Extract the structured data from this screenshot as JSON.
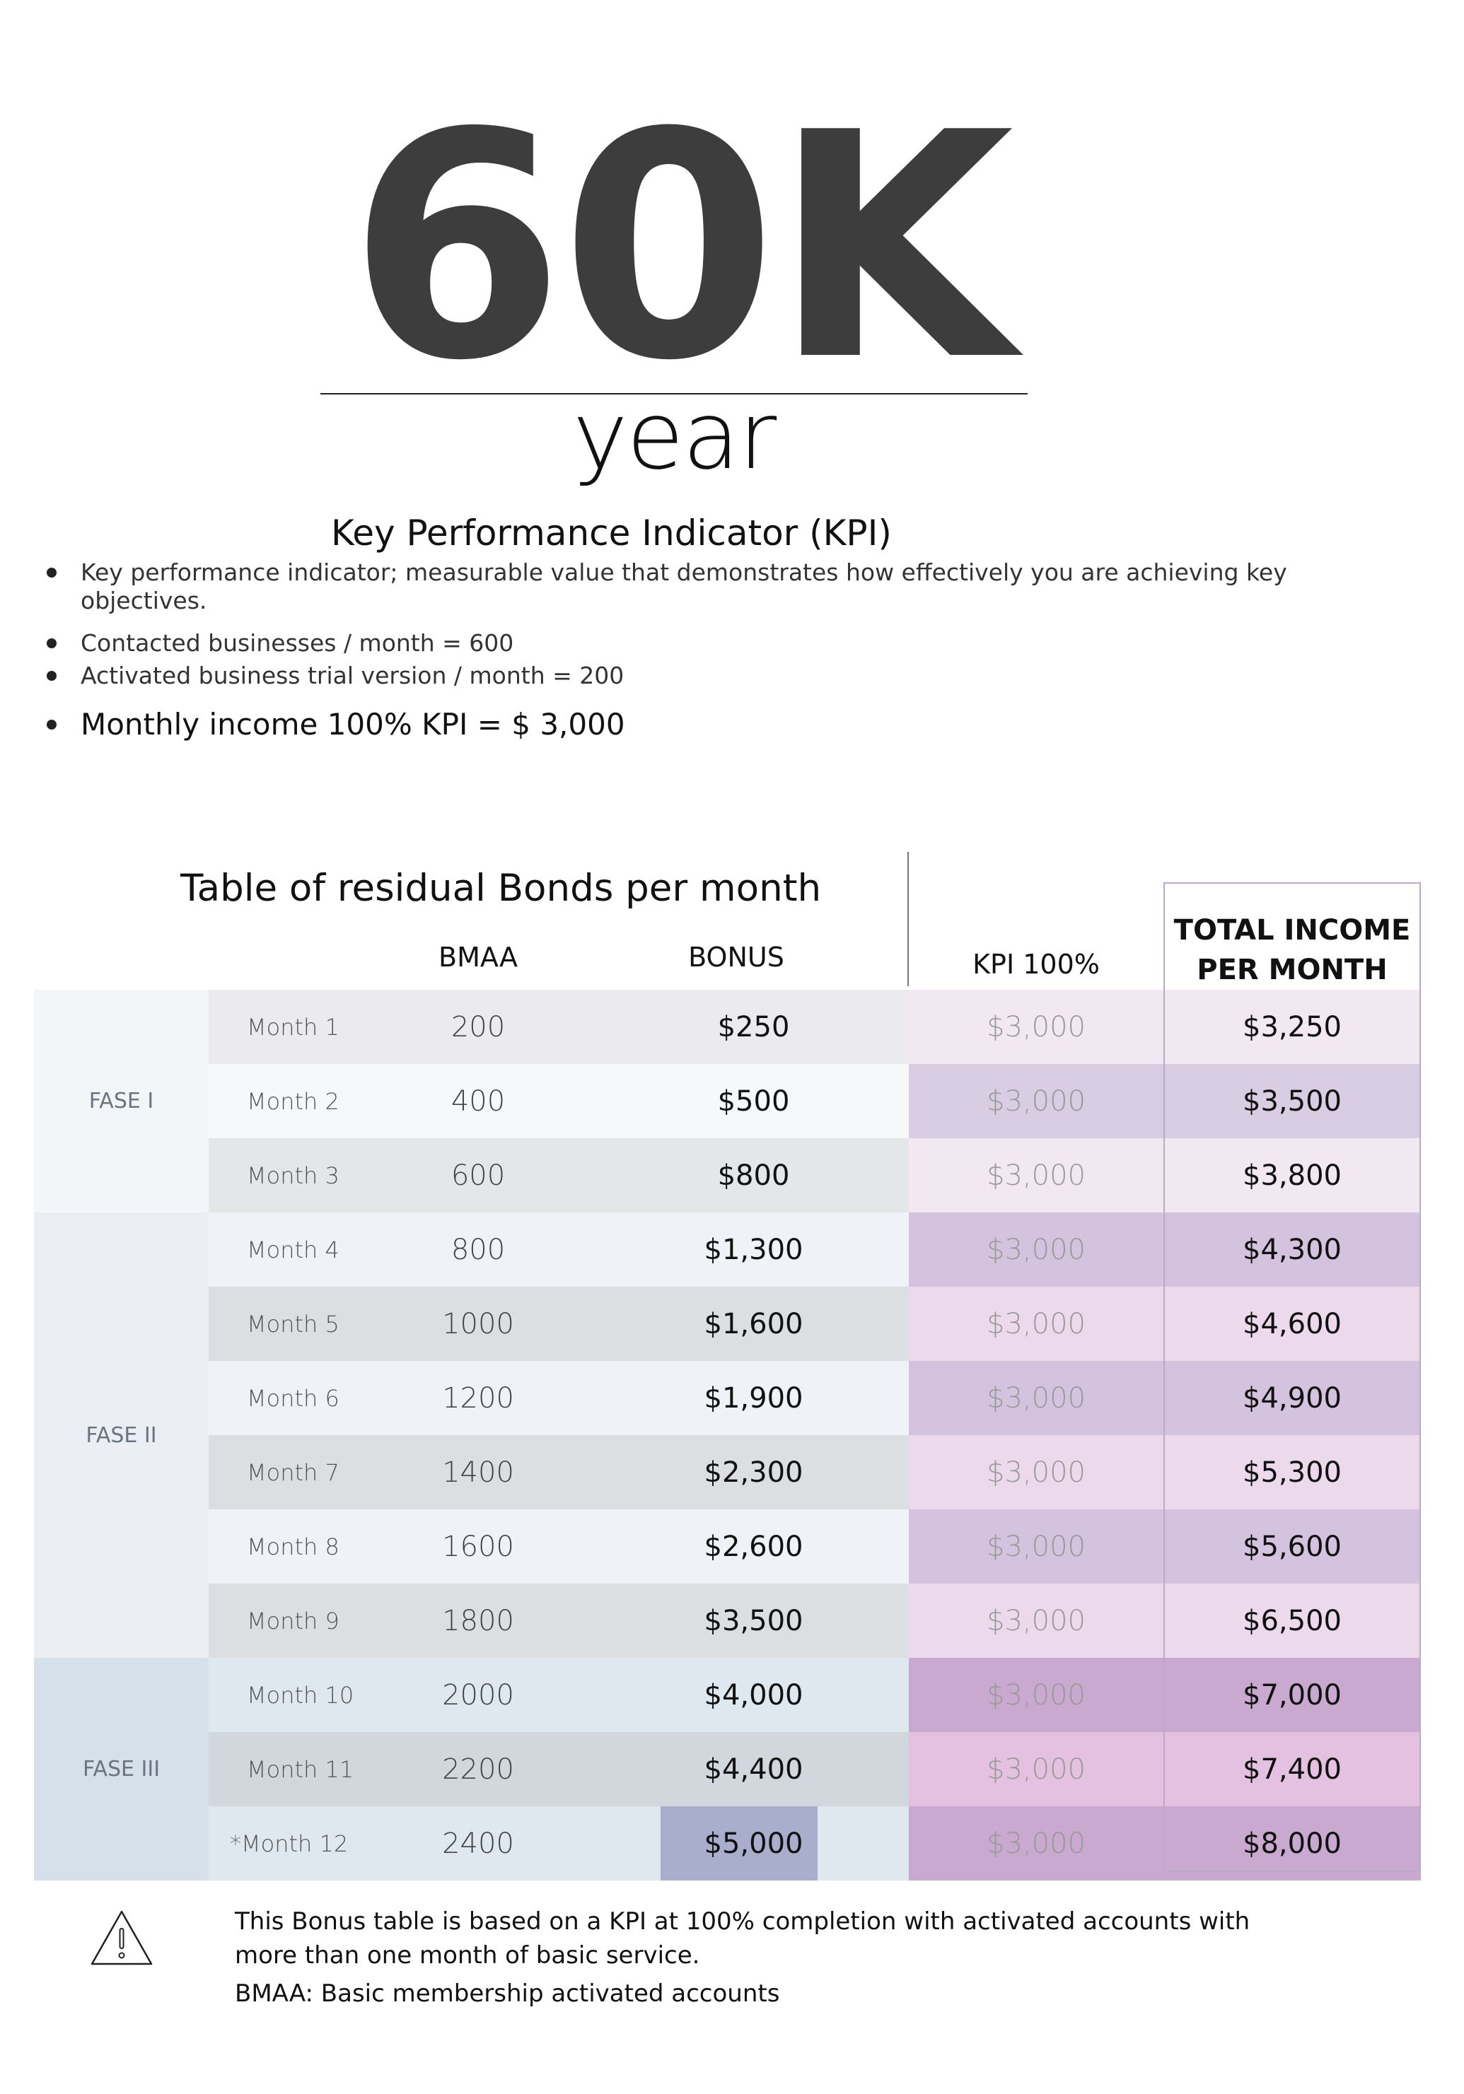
{
  "hero": {
    "amount": "60K",
    "unit": "year"
  },
  "kpi": {
    "title": "Key Performance Indicator (KPI)",
    "bullets": [
      "Key performance indicator; measurable value that demonstrates how effectively you are achieving key objectives.",
      "Contacted businesses / month = 600",
      "Activated business trial version / month = 200",
      "Monthly income 100% KPI = $ 3,000"
    ]
  },
  "table": {
    "title": "Table of residual Bonds per month",
    "headers": {
      "bmaa": "BMAA",
      "bonus": "BONUS",
      "kpi": "KPI 100%",
      "total_line1": "TOTAL INCOME",
      "total_line2": "PER MONTH"
    },
    "phases": [
      "FASE I",
      "FASE II",
      "FASE III"
    ],
    "rows": [
      {
        "month": "Month 1",
        "bmaa": "200",
        "bonus": "$250",
        "kpi": "$3,000",
        "total": "$3,250"
      },
      {
        "month": "Month 2",
        "bmaa": "400",
        "bonus": "$500",
        "kpi": "$3,000",
        "total": "$3,500"
      },
      {
        "month": "Month 3",
        "bmaa": "600",
        "bonus": "$800",
        "kpi": "$3,000",
        "total": "$3,800"
      },
      {
        "month": "Month 4",
        "bmaa": "800",
        "bonus": "$1,300",
        "kpi": "$3,000",
        "total": "$4,300"
      },
      {
        "month": "Month 5",
        "bmaa": "1000",
        "bonus": "$1,600",
        "kpi": "$3,000",
        "total": "$4,600"
      },
      {
        "month": "Month 6",
        "bmaa": "1200",
        "bonus": "$1,900",
        "kpi": "$3,000",
        "total": "$4,900"
      },
      {
        "month": "Month 7",
        "bmaa": "1400",
        "bonus": "$2,300",
        "kpi": "$3,000",
        "total": "$5,300"
      },
      {
        "month": "Month 8",
        "bmaa": "1600",
        "bonus": "$2,600",
        "kpi": "$3,000",
        "total": "$5,600"
      },
      {
        "month": "Month 9",
        "bmaa": "1800",
        "bonus": "$3,500",
        "kpi": "$3,000",
        "total": "$6,500"
      },
      {
        "month": "Month 10",
        "bmaa": "2000",
        "bonus": "$4,000",
        "kpi": "$3,000",
        "total": "$7,000"
      },
      {
        "month": "Month 11",
        "bmaa": "2200",
        "bonus": "$4,400",
        "kpi": "$3,000",
        "total": "$7,400"
      },
      {
        "month": "*Month 12",
        "bmaa": "2400",
        "bonus": "$5,000",
        "kpi": "$3,000",
        "total": "$8,000"
      }
    ]
  },
  "footer": {
    "icon": "warning-triangle-icon",
    "note": "This Bonus table is based on a KPI at 100% completion with activated accounts with more than one month of basic service.",
    "definition": "BMAA: Basic membership activated accounts"
  }
}
